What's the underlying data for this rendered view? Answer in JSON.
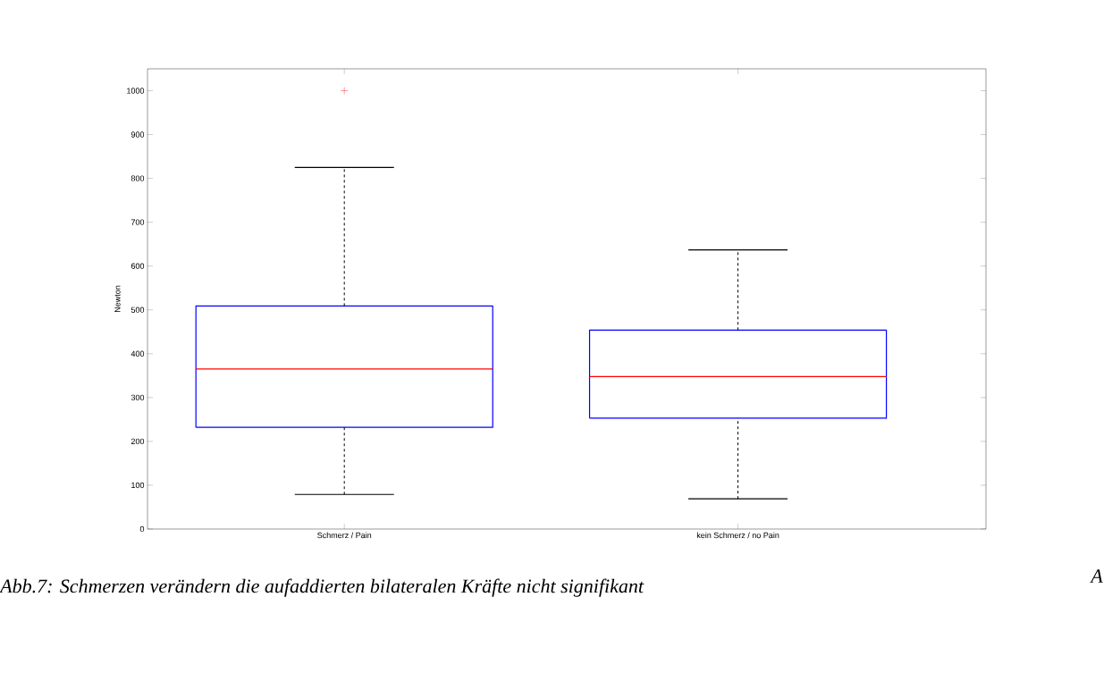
{
  "chart_data": {
    "type": "box",
    "ylabel": "Newton",
    "categories": [
      "Schmerz / Pain",
      "kein Schmerz / no Pain"
    ],
    "boxes": [
      {
        "low": 79,
        "q1": 232,
        "median": 365,
        "q3": 509,
        "high": 825,
        "outliers": [
          1000
        ]
      },
      {
        "low": 69,
        "q1": 253,
        "median": 348,
        "q3": 454,
        "high": 637
      }
    ],
    "ylim": [
      0,
      1050
    ],
    "yticks": [
      0,
      100,
      200,
      300,
      400,
      500,
      600,
      700,
      800,
      900,
      1000
    ],
    "annotations": [
      "Abb.7: Schmerzen verändern die aufaddierten bilateralen Kräfte nicht signifikant",
      "A"
    ],
    "grid": false
  }
}
